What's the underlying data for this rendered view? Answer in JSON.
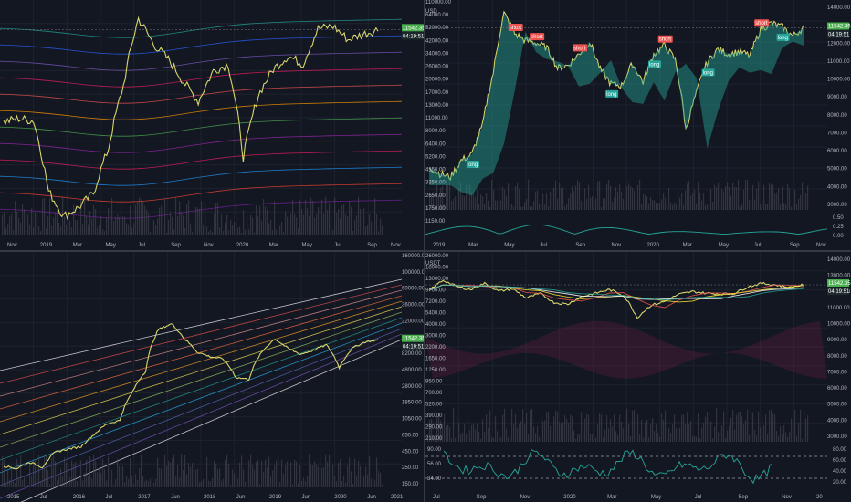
{
  "colors": {
    "bg": "#131722",
    "grid": "#1e222d",
    "text": "#b2b5be",
    "price": "#d7d66a",
    "badge_green": "#26a69a",
    "badge_current": "#4caf50",
    "short_badge": "#ef5350",
    "long_badge": "#26a69a",
    "volume": "#4a4d55"
  },
  "chart_data": [
    {
      "id": "top-left",
      "type": "line",
      "x_ticks": [
        "Nov",
        "2019",
        "Mar",
        "May",
        "Jul",
        "Sep",
        "Nov",
        "2020",
        "Mar",
        "May",
        "Jul",
        "Sep",
        "Nov"
      ],
      "y_ticks": [],
      "price_badge": "11542.35",
      "time_badge": "04:19:51",
      "series": [
        {
          "values": [
            6300,
            6450,
            6350,
            4000,
            3400,
            3600,
            3950,
            5300,
            8000,
            12400,
            10500,
            9500,
            8200,
            7200,
            8800,
            9200,
            5000,
            7500,
            8900,
            9700,
            9200,
            11600,
            11800,
            10800,
            11200,
            11542
          ]
        }
      ]
    },
    {
      "id": "top-right",
      "type": "line",
      "currency": "USD",
      "x_ticks": [
        "2019",
        "Mar",
        "May",
        "Jul",
        "Sep",
        "Nov",
        "2020",
        "Mar",
        "May",
        "Jul",
        "Sep",
        "Nov"
      ],
      "y_ticks": [
        "110000.00",
        "64000.00",
        "52000.00",
        "42000.00",
        "34000.00",
        "26000.00",
        "20000.00",
        "17000.00",
        "13000.00",
        "11000.00",
        "8000.00",
        "6400.00",
        "5200.00",
        "4150.00",
        "3350.00",
        "2650.00",
        "1750.00",
        "1150.00"
      ],
      "right_ticks": [
        "14000.00",
        "13000.00",
        "12000.00",
        "11000.00",
        "10000.00",
        "9000.00",
        "8000.00",
        "7000.00",
        "6000.00",
        "5000.00",
        "4000.00",
        "3000.00"
      ],
      "indicator_ticks": [
        "0.50",
        "0.25",
        "0.00"
      ],
      "price_badge": "11542.35",
      "time_badge": "04:19:51",
      "signals": [
        "short",
        "short",
        "short",
        "short",
        "short",
        "long",
        "long",
        "long",
        "long",
        "long"
      ],
      "series": [
        {
          "values": [
            3700,
            3500,
            3400,
            3900,
            4100,
            5200,
            8000,
            13000,
            11000,
            10400,
            10200,
            9800,
            8300,
            8500,
            9300,
            10300,
            8200,
            7300,
            7200,
            8600,
            7400,
            9300,
            10000,
            8900,
            5000,
            6800,
            8700,
            9700,
            9300,
            9500,
            9200,
            11400,
            12000,
            11600,
            10800,
            11542
          ]
        }
      ]
    },
    {
      "id": "bottom-left",
      "type": "line",
      "x_ticks": [
        "2015",
        "Jul",
        "2016",
        "Jul",
        "2017",
        "Jun",
        "2018",
        "Jun",
        "2019",
        "Jun",
        "2020",
        "Jun",
        "2021"
      ],
      "y_ticks": [
        "160000.00",
        "100000.00",
        "60000.00",
        "36000.00",
        "22000.00",
        "14000.00",
        "8200.00",
        "4800.00",
        "2800.00",
        "1850.00",
        "1050.00",
        "650.00",
        "450.00",
        "250.00",
        "150.00"
      ],
      "price_badge": "11542.35",
      "time_badge": "04:19:51",
      "series": [
        {
          "values": [
            250,
            230,
            280,
            240,
            380,
            420,
            450,
            650,
            900,
            1000,
            2400,
            4500,
            16000,
            19000,
            12000,
            8000,
            7000,
            6500,
            3700,
            3500,
            8000,
            12000,
            9000,
            7500,
            8500,
            10000,
            5000,
            9000,
            11000,
            11542
          ]
        }
      ]
    },
    {
      "id": "bottom-right",
      "type": "line",
      "currency": "USDT",
      "x_ticks": [
        "Jul",
        "Sep",
        "Nov",
        "2020",
        "Mar",
        "May",
        "Jul",
        "Sep",
        "Nov",
        "20"
      ],
      "y_ticks": [
        "26000.00",
        "18000.00",
        "13000.00",
        "9700.00",
        "7200.00",
        "5400.00",
        "4000.00",
        "3000.00",
        "2200.00",
        "1650.00",
        "1250.00",
        "950.00",
        "700.00",
        "520.00",
        "390.00",
        "290.00",
        "210.00"
      ],
      "right_ticks": [
        "14000.00",
        "13000.00",
        "12000.00",
        "11000.00",
        "10000.00",
        "9000.00",
        "8000.00",
        "7000.00",
        "6000.00",
        "5000.00",
        "4000.00",
        "3000.00"
      ],
      "rsi_ticks": [
        "90.00",
        "56.00",
        "34.00",
        "80.00",
        "60.00",
        "40.00",
        "20.00"
      ],
      "price_badge": "11542.35",
      "time_badge": "04:19:51",
      "series": [
        {
          "values": [
            10000,
            13000,
            11000,
            10200,
            12000,
            9800,
            10400,
            8200,
            9200,
            7300,
            7000,
            8500,
            9300,
            10200,
            8800,
            4900,
            6800,
            7500,
            9000,
            9700,
            9300,
            9100,
            9200,
            11000,
            12000,
            11500,
            10800,
            11542
          ]
        }
      ]
    }
  ]
}
